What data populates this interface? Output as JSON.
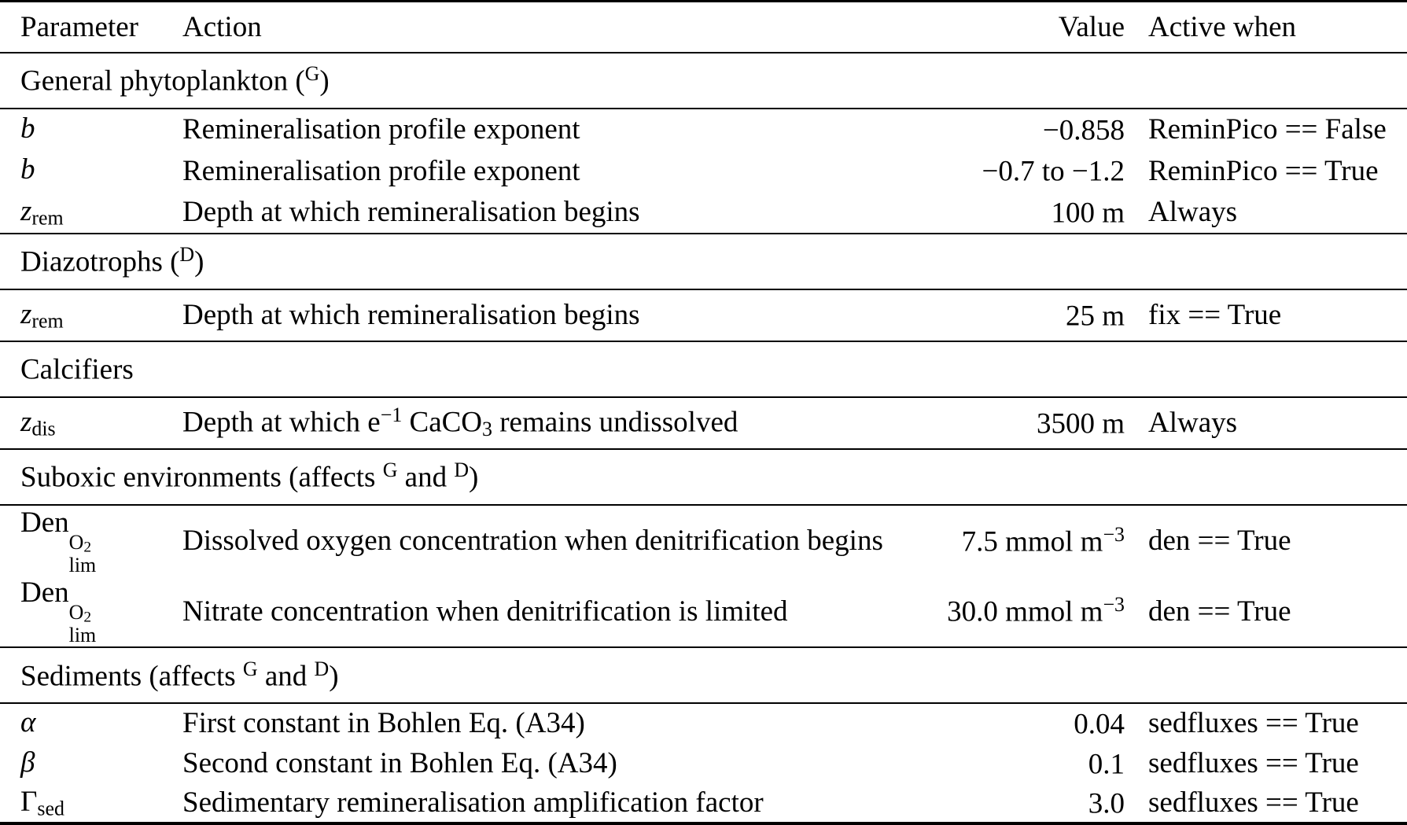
{
  "colors": {
    "text": "#000000",
    "background": "#ffffff",
    "rule": "#000000"
  },
  "header": {
    "parameter": "Parameter",
    "action": "Action",
    "value": "Value",
    "active_when": "Active when"
  },
  "sections": [
    {
      "title": {
        "pre": "General phytoplankton (",
        "sup1": "G",
        "mid": ")"
      }
    },
    {
      "title": {
        "pre": "Diazotrophs (",
        "sup1": "D",
        "mid": ")"
      }
    },
    {
      "title": {
        "pre": "Calcifiers"
      }
    },
    {
      "title": {
        "pre": "Suboxic environments (affects ",
        "sup1": "G",
        "mid": " and ",
        "sup2": "D",
        "post": ")"
      }
    },
    {
      "title": {
        "pre": "Sediments (affects ",
        "sup1": "G",
        "mid": " and ",
        "sup2": "D",
        "post": ")"
      }
    }
  ],
  "rows": [
    {
      "param": {
        "base": "b"
      },
      "action": {
        "pre": "Remineralisation profile exponent"
      },
      "value": {
        "pre": "−0.858"
      },
      "active": "ReminPico == False"
    },
    {
      "param": {
        "base": "b"
      },
      "action": {
        "pre": "Remineralisation profile exponent"
      },
      "value": {
        "pre": "−0.7 to −1.2"
      },
      "active": "ReminPico == True"
    },
    {
      "param": {
        "base": "z",
        "sub": "rem"
      },
      "action": {
        "pre": "Depth at which remineralisation begins"
      },
      "value": {
        "pre": "100 m"
      },
      "active": "Always"
    },
    {
      "param": {
        "base": "z",
        "sub": "rem"
      },
      "action": {
        "pre": "Depth at which remineralisation begins"
      },
      "value": {
        "pre": "25 m"
      },
      "active": "fix == True"
    },
    {
      "param": {
        "base": "z",
        "sub": "dis"
      },
      "action": {
        "pre": "Depth at which e",
        "sup": "−1",
        "mid": " CaCO",
        "sub": "3",
        "post": " remains undissolved"
      },
      "value": {
        "pre": "3500 m"
      },
      "active": "Always"
    },
    {
      "param": {
        "base": "Den",
        "stack_top": "O",
        "stack_top_sub": "2",
        "stack_bot": "lim"
      },
      "action": {
        "pre": "Dissolved oxygen concentration when denitrification begins"
      },
      "value": {
        "pre": "7.5 mmol m",
        "sup": "−3"
      },
      "active": "den == True"
    },
    {
      "param": {
        "base": "Den",
        "stack_top": "O",
        "stack_top_sub": "2",
        "stack_bot": "lim"
      },
      "action": {
        "pre": "Nitrate concentration when denitrification is limited"
      },
      "value": {
        "pre": "30.0 mmol m",
        "sup": "−3"
      },
      "active": "den == True"
    },
    {
      "param": {
        "base": "α"
      },
      "action": {
        "pre": "First constant in Bohlen Eq. (A34)"
      },
      "value": {
        "pre": "0.04"
      },
      "active": "sedfluxes == True"
    },
    {
      "param": {
        "base": "β"
      },
      "action": {
        "pre": "Second constant in Bohlen Eq. (A34)"
      },
      "value": {
        "pre": "0.1"
      },
      "active": "sedfluxes == True"
    },
    {
      "param": {
        "base": "Γ",
        "sub": "sed"
      },
      "action": {
        "pre": "Sedimentary remineralisation amplification factor"
      },
      "value": {
        "pre": "3.0"
      },
      "active": "sedfluxes == True"
    }
  ]
}
